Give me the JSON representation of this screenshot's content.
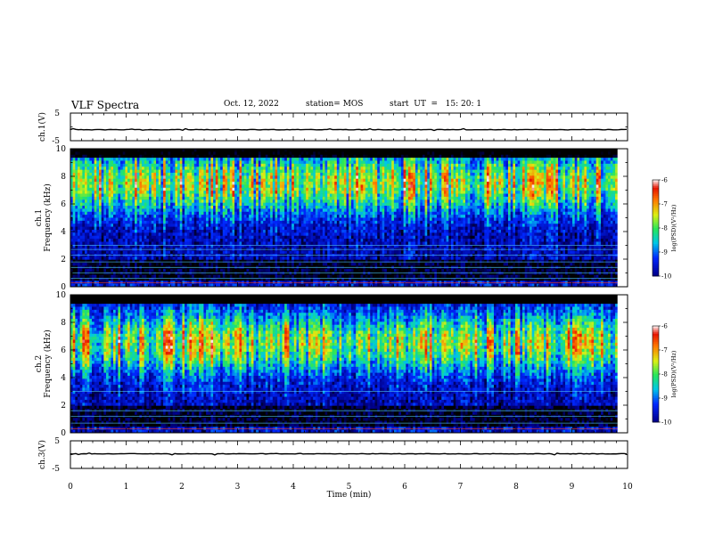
{
  "header": {
    "title": "VLF Spectra",
    "date": "Oct. 12, 2022",
    "station": "station= MOS",
    "start": "start  UT  =   15: 20: 1"
  },
  "chart_data": [
    {
      "type": "line",
      "panel": "ch1-waveform",
      "ylabel": "ch.1(V)",
      "ylim": [
        -5,
        5
      ],
      "yticks": [
        "5",
        "-5"
      ],
      "xlim": [
        0,
        10
      ],
      "series": [
        {
          "level": -1.0,
          "color": "#000000"
        }
      ]
    },
    {
      "type": "heatmap",
      "panel": "ch1-spectrogram",
      "ylabel": "ch.1\nFrequency (kHz)",
      "ylabel_lines": [
        "ch.1",
        "Frequency (kHz)"
      ],
      "ylim": [
        0,
        10
      ],
      "yticks": [
        "0",
        "2",
        "4",
        "6",
        "8",
        "10"
      ],
      "xlim": [
        0,
        10
      ],
      "data_end_min": 9.82,
      "intensity_peak_khz": 7.5,
      "line_interference_khz": [
        0.3,
        0.6,
        1.0,
        1.4,
        1.8,
        2.3,
        2.7,
        3.0
      ],
      "colorbar": {
        "label": "log(PSD)(V²/Hz)",
        "min": -10,
        "max": -6,
        "ticks": [
          "-6",
          "-7",
          "-8",
          "-9",
          "-10"
        ]
      }
    },
    {
      "type": "heatmap",
      "panel": "ch2-spectrogram",
      "ylabel": "ch.2\nFrequency (kHz)",
      "ylabel_lines": [
        "ch.2",
        "Frequency (kHz)"
      ],
      "ylim": [
        0,
        10
      ],
      "yticks": [
        "0",
        "2",
        "4",
        "6",
        "8",
        "10"
      ],
      "xlim": [
        0,
        10
      ],
      "data_end_min": 9.82,
      "intensity_peak_khz": 6.5,
      "line_interference_khz": [
        0.3,
        0.7,
        1.2,
        1.6,
        3.0
      ],
      "colorbar": {
        "label": "log(PSD)(V²/Hz)",
        "min": -10,
        "max": -6,
        "ticks": [
          "-6",
          "-7",
          "-8",
          "-9",
          "-10"
        ]
      }
    },
    {
      "type": "line",
      "panel": "ch3-waveform",
      "ylabel": "ch.3(V)",
      "ylim": [
        -5,
        5
      ],
      "yticks": [
        "5",
        "-5"
      ],
      "xlim": [
        0,
        10
      ],
      "xlabel": "Time  (min)",
      "xticks": [
        "0",
        "1",
        "2",
        "3",
        "4",
        "5",
        "6",
        "7",
        "8",
        "9",
        "10"
      ],
      "series": [
        {
          "level": 0.3,
          "color": "#000000"
        }
      ]
    }
  ]
}
